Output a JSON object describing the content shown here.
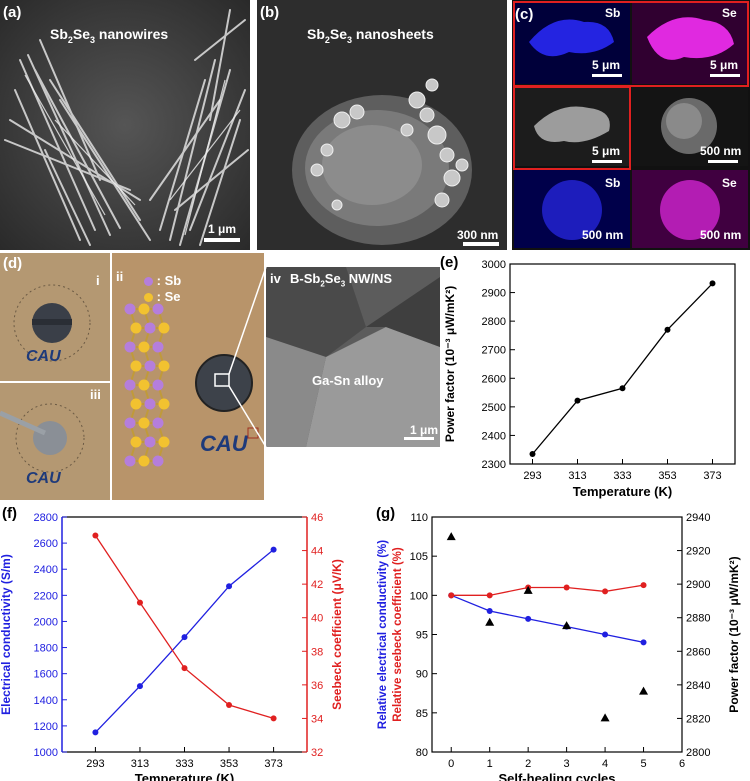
{
  "panel_a": {
    "label": "(a)",
    "title_main": "Sb",
    "sub1": "2",
    "mid": "Se",
    "sub2": "3",
    "title_rest": " nanowires",
    "scale": "1 μm"
  },
  "panel_b": {
    "label": "(b)",
    "title_main": "Sb",
    "sub1": "2",
    "mid": "Se",
    "sub2": "3",
    "title_rest": " nanosheets",
    "scale": "300 nm"
  },
  "panel_c": {
    "label": "(c)",
    "sb": "Sb",
    "se": "Se",
    "scale_5um": "5 μm",
    "scale_500nm": "500 nm",
    "sb_color": "#1a1aff",
    "se_color": "#e020e0",
    "box_color": "#e02020"
  },
  "panel_d": {
    "label": "(d)",
    "i": "i",
    "ii": "ii",
    "iii": "iii",
    "iv": "iv",
    "legend_sb": ": Sb",
    "legend_se": ": Se",
    "stamp_text": "1 9 1 6 · C H U N G - A N G · U N I V E R S I T Y",
    "logo": "CAU",
    "nw_title_main": "B-Sb",
    "nw_sub1": "2",
    "nw_mid": "Se",
    "nw_sub2": "3",
    "nw_rest": " NW/NS",
    "alloy": "Ga-Sn alloy",
    "scale": "1 μm",
    "sb_color": "#b57edc",
    "se_color": "#f2c230"
  },
  "panel_e": {
    "label": "(e)"
  },
  "panel_f": {
    "label": "(f)"
  },
  "panel_g": {
    "label": "(g)"
  },
  "chart_data": [
    {
      "id": "e",
      "type": "line",
      "x": [
        293,
        313,
        333,
        353,
        373
      ],
      "y": [
        2335,
        2522,
        2565,
        2770,
        2932
      ],
      "xlabel": "Temperature (K)",
      "ylabel": "Power factor (10⁻³ μW/mK²)",
      "xticks": [
        293,
        313,
        333,
        353,
        373
      ],
      "yticks": [
        2300,
        2400,
        2500,
        2600,
        2700,
        2800,
        2900,
        3000
      ],
      "xlim": [
        283,
        383
      ],
      "ylim": [
        2300,
        3000
      ],
      "color": "#000000"
    },
    {
      "id": "f",
      "type": "line",
      "x": [
        293,
        313,
        333,
        353,
        373
      ],
      "series": [
        {
          "values": [
            1150,
            1505,
            1880,
            2270,
            2550
          ],
          "axis": "left",
          "color": "#2020e0"
        },
        {
          "values": [
            44.9,
            40.9,
            37.0,
            34.8,
            34.0
          ],
          "axis": "right",
          "color": "#e02020"
        }
      ],
      "xlabel": "Temperature (K)",
      "ylabel_left": "Electrical conductivity (S/m)",
      "ylabel_right": "Seebeck coefficient (μV/K)",
      "xticks": [
        293,
        313,
        333,
        353,
        373
      ],
      "yticks_left": [
        1000,
        1200,
        1400,
        1600,
        1800,
        2000,
        2200,
        2400,
        2600,
        2800
      ],
      "yticks_right": [
        32,
        34,
        36,
        38,
        40,
        42,
        44,
        46
      ],
      "xlim": [
        278,
        388
      ],
      "ylim_left": [
        1000,
        2800
      ],
      "ylim_right": [
        32,
        46
      ]
    },
    {
      "id": "g",
      "type": "line",
      "x": [
        0,
        1,
        2,
        3,
        4,
        5
      ],
      "series": [
        {
          "values": [
            100,
            98,
            97,
            96,
            95,
            94
          ],
          "axis": "left",
          "color": "#2020e0",
          "marker": "circle"
        },
        {
          "values": [
            100,
            100,
            101,
            101,
            100.5,
            101.3
          ],
          "axis": "left",
          "color": "#e02020",
          "marker": "circle"
        },
        {
          "values": [
            2928,
            2877,
            2896,
            2875,
            2820,
            2836
          ],
          "axis": "right",
          "color": "#000000",
          "marker": "triangle"
        }
      ],
      "xlabel": "Self-healing cycles",
      "ylabel_left1": "Relative electrical conductivity (%)",
      "ylabel_left2": "Relative seebeck coefficient (%)",
      "ylabel_right": "Power factor (10⁻³ μW/mK²)",
      "xticks": [
        0,
        1,
        2,
        3,
        4,
        5,
        6
      ],
      "yticks_left": [
        80,
        85,
        90,
        95,
        100,
        105,
        110
      ],
      "yticks_right": [
        2800,
        2820,
        2840,
        2860,
        2880,
        2900,
        2920,
        2940
      ],
      "xlim": [
        -0.5,
        6
      ],
      "ylim_left": [
        80,
        110
      ],
      "ylim_right": [
        2800,
        2940
      ]
    }
  ]
}
